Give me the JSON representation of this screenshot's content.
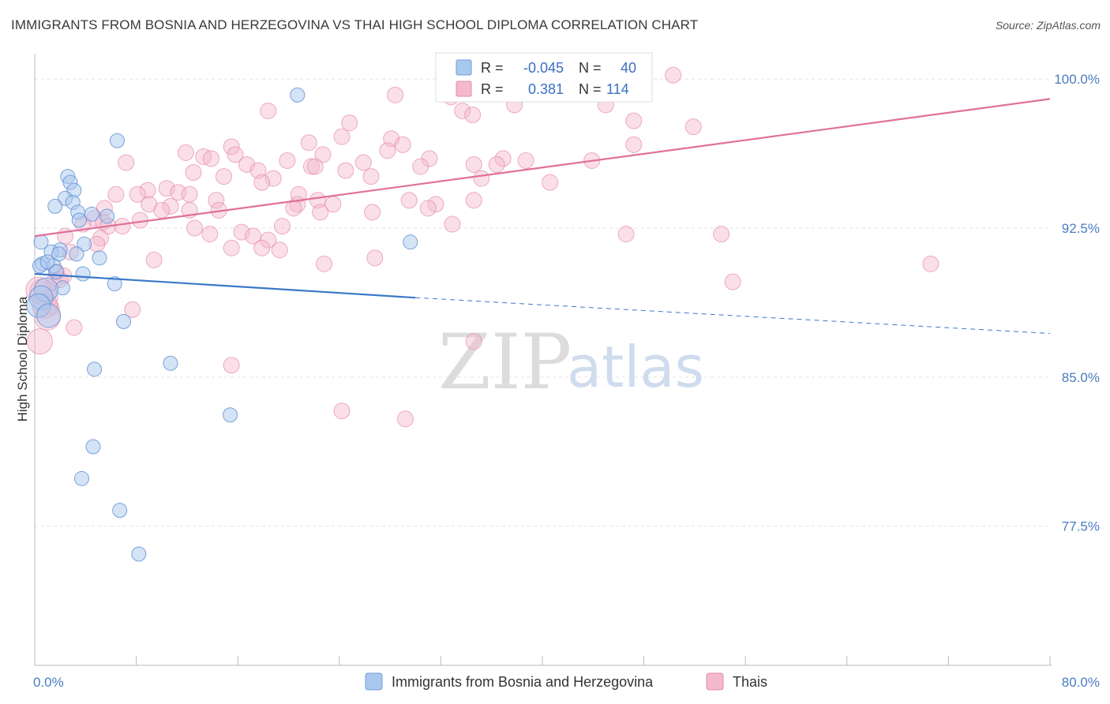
{
  "title": "IMMIGRANTS FROM BOSNIA AND HERZEGOVINA VS THAI HIGH SCHOOL DIPLOMA CORRELATION CHART",
  "source": "Source: ZipAtlas.com",
  "watermark": {
    "zip": "ZIP",
    "atlas": "atlas"
  },
  "colors": {
    "blue": "#3a78c9",
    "blue_fill": "#a9c8ee",
    "pink": "#e0709a",
    "pink_fill": "#f4b9cc",
    "tick_text": "#4a7cc0"
  },
  "chart_data": {
    "type": "scatter",
    "xlabel": "",
    "ylabel": "High School Diploma",
    "xlim": [
      0,
      80
    ],
    "ylim": [
      70.5,
      101.2
    ],
    "x_ticks": [
      "0.0%",
      "80.0%"
    ],
    "y_ticks": [
      {
        "value": 100.0,
        "label": "100.0%"
      },
      {
        "value": 92.5,
        "label": "92.5%"
      },
      {
        "value": 85.0,
        "label": "85.0%"
      },
      {
        "value": 77.5,
        "label": "77.5%"
      }
    ],
    "grid": true,
    "legend": {
      "position": "top-center",
      "entries": [
        {
          "r_label": "R =",
          "r": "-0.045",
          "n_label": "N =",
          "n": "40"
        },
        {
          "r_label": "R =",
          "r": "0.381",
          "n_label": "N =",
          "n": "114"
        }
      ]
    },
    "series": [
      {
        "name": "Immigrants from Bosnia and Herzegovina",
        "color": "blue",
        "trend": {
          "x0": 0,
          "y0": 90.2,
          "x1": 30,
          "y1": 89.0,
          "dash_to_x": 80,
          "dash_to_y": 87.2
        },
        "points": [
          [
            20.7,
            99.2
          ],
          [
            6.5,
            96.9
          ],
          [
            2.6,
            95.1
          ],
          [
            2.8,
            94.8
          ],
          [
            3.1,
            94.4
          ],
          [
            2.4,
            94.0
          ],
          [
            1.6,
            93.6
          ],
          [
            3.0,
            93.8
          ],
          [
            4.5,
            93.2
          ],
          [
            3.4,
            93.3
          ],
          [
            5.7,
            93.1
          ],
          [
            3.5,
            92.9
          ],
          [
            0.5,
            91.8
          ],
          [
            3.9,
            91.7
          ],
          [
            2.0,
            91.4
          ],
          [
            1.3,
            91.3
          ],
          [
            1.9,
            91.2
          ],
          [
            3.3,
            91.2
          ],
          [
            5.1,
            91.0
          ],
          [
            0.6,
            90.7
          ],
          [
            0.4,
            90.6
          ],
          [
            1.5,
            90.6
          ],
          [
            1.0,
            90.8
          ],
          [
            1.7,
            90.3
          ],
          [
            3.8,
            90.2
          ],
          [
            6.3,
            89.7
          ],
          [
            2.2,
            89.5
          ],
          [
            0.9,
            89.4
          ],
          [
            0.5,
            89.0
          ],
          [
            0.3,
            88.6
          ],
          [
            1.1,
            88.1
          ],
          [
            7.0,
            87.8
          ],
          [
            10.7,
            85.7
          ],
          [
            4.7,
            85.4
          ],
          [
            15.4,
            83.1
          ],
          [
            4.6,
            81.5
          ],
          [
            3.7,
            79.9
          ],
          [
            6.7,
            78.3
          ],
          [
            8.2,
            76.1
          ],
          [
            29.6,
            91.8
          ]
        ]
      },
      {
        "name": "Thais",
        "color": "pink",
        "trend": {
          "x0": 0,
          "y0": 92.1,
          "x1": 80,
          "y1": 99.0
        },
        "points": [
          [
            50.3,
            100.2
          ],
          [
            33.5,
            99.3
          ],
          [
            32.8,
            99.1
          ],
          [
            37.8,
            98.7
          ],
          [
            28.4,
            99.2
          ],
          [
            45.0,
            98.7
          ],
          [
            18.4,
            98.4
          ],
          [
            33.7,
            98.4
          ],
          [
            34.5,
            98.2
          ],
          [
            47.2,
            97.9
          ],
          [
            24.8,
            97.8
          ],
          [
            51.9,
            97.6
          ],
          [
            24.2,
            97.1
          ],
          [
            28.1,
            97.0
          ],
          [
            21.6,
            96.8
          ],
          [
            47.2,
            96.7
          ],
          [
            29.0,
            96.7
          ],
          [
            15.5,
            96.6
          ],
          [
            27.8,
            96.4
          ],
          [
            11.9,
            96.3
          ],
          [
            15.8,
            96.2
          ],
          [
            13.3,
            96.1
          ],
          [
            22.7,
            96.2
          ],
          [
            13.9,
            96.0
          ],
          [
            36.9,
            96.0
          ],
          [
            31.1,
            96.0
          ],
          [
            38.7,
            95.9
          ],
          [
            43.9,
            95.9
          ],
          [
            19.9,
            95.9
          ],
          [
            7.2,
            95.8
          ],
          [
            25.9,
            95.8
          ],
          [
            16.7,
            95.7
          ],
          [
            36.4,
            95.7
          ],
          [
            30.4,
            95.6
          ],
          [
            21.8,
            95.6
          ],
          [
            34.6,
            95.7
          ],
          [
            17.6,
            95.4
          ],
          [
            22.1,
            95.6
          ],
          [
            24.5,
            95.4
          ],
          [
            12.5,
            95.3
          ],
          [
            14.9,
            95.1
          ],
          [
            18.8,
            95.0
          ],
          [
            26.5,
            95.1
          ],
          [
            35.2,
            95.0
          ],
          [
            40.6,
            94.8
          ],
          [
            17.9,
            94.8
          ],
          [
            10.4,
            94.5
          ],
          [
            8.9,
            94.4
          ],
          [
            11.3,
            94.3
          ],
          [
            6.4,
            94.2
          ],
          [
            8.1,
            94.2
          ],
          [
            12.2,
            94.2
          ],
          [
            20.8,
            94.2
          ],
          [
            22.3,
            93.9
          ],
          [
            34.6,
            93.9
          ],
          [
            14.3,
            93.9
          ],
          [
            29.5,
            93.9
          ],
          [
            20.7,
            93.7
          ],
          [
            23.5,
            93.7
          ],
          [
            31.6,
            93.7
          ],
          [
            31.0,
            93.5
          ],
          [
            9.0,
            93.7
          ],
          [
            10.7,
            93.6
          ],
          [
            5.5,
            93.5
          ],
          [
            10.0,
            93.4
          ],
          [
            12.2,
            93.4
          ],
          [
            20.4,
            93.5
          ],
          [
            14.5,
            93.4
          ],
          [
            22.5,
            93.3
          ],
          [
            26.6,
            93.3
          ],
          [
            8.3,
            92.9
          ],
          [
            4.7,
            93.0
          ],
          [
            5.4,
            92.8
          ],
          [
            3.8,
            92.7
          ],
          [
            5.8,
            92.6
          ],
          [
            6.9,
            92.6
          ],
          [
            32.9,
            92.7
          ],
          [
            19.5,
            92.6
          ],
          [
            12.6,
            92.5
          ],
          [
            16.3,
            92.3
          ],
          [
            46.6,
            92.2
          ],
          [
            54.1,
            92.2
          ],
          [
            13.8,
            92.2
          ],
          [
            17.2,
            92.1
          ],
          [
            2.4,
            92.1
          ],
          [
            18.4,
            91.9
          ],
          [
            5.2,
            92.0
          ],
          [
            4.9,
            91.7
          ],
          [
            17.9,
            91.5
          ],
          [
            15.5,
            91.5
          ],
          [
            19.3,
            91.4
          ],
          [
            2.8,
            91.3
          ],
          [
            26.8,
            91.0
          ],
          [
            9.4,
            90.9
          ],
          [
            22.8,
            90.7
          ],
          [
            70.6,
            90.7
          ],
          [
            1.7,
            90.3
          ],
          [
            2.3,
            90.1
          ],
          [
            55.0,
            89.8
          ],
          [
            1.5,
            89.8
          ],
          [
            0.6,
            89.3
          ],
          [
            1.2,
            89.0
          ],
          [
            1.3,
            88.5
          ],
          [
            0.8,
            88.6
          ],
          [
            7.7,
            88.4
          ],
          [
            1.0,
            88.0
          ],
          [
            3.1,
            87.5
          ],
          [
            0.4,
            86.8
          ],
          [
            34.6,
            86.8
          ],
          [
            15.5,
            85.6
          ],
          [
            24.2,
            83.3
          ],
          [
            29.2,
            82.9
          ],
          [
            0.3,
            89.4
          ],
          [
            2.0,
            89.9
          ]
        ]
      }
    ]
  },
  "bottom_legend": [
    {
      "label": "Immigrants from Bosnia and Herzegovina",
      "color": "blue"
    },
    {
      "label": "Thais",
      "color": "pink"
    }
  ]
}
